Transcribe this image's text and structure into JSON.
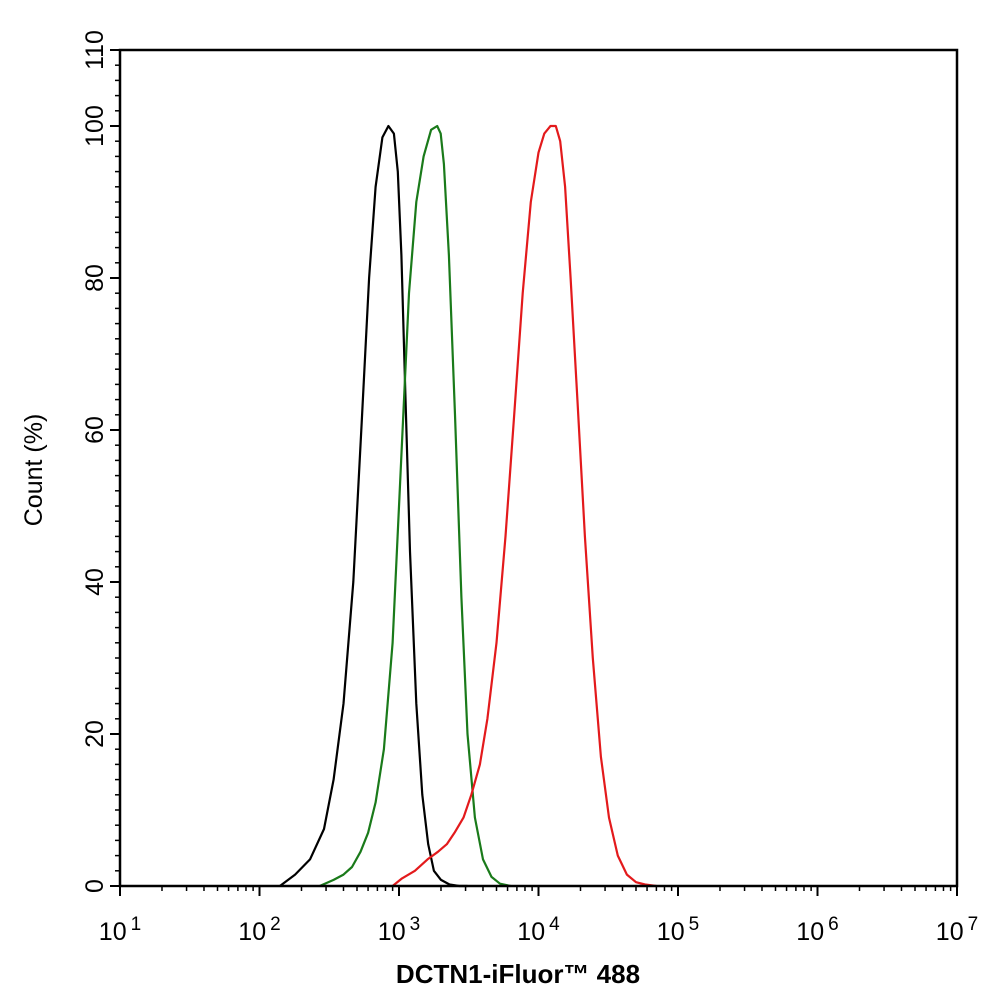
{
  "chart_data": {
    "type": "line",
    "title": "",
    "xlabel": "DCTN1-iFluor™ 488",
    "ylabel": "Count  (%)",
    "x_scale": "log",
    "xlim": [
      10,
      10000000
    ],
    "ylim": [
      0,
      110
    ],
    "grid": false,
    "legend": "none",
    "x_ticks": [
      {
        "base": "10",
        "exp": "1"
      },
      {
        "base": "10",
        "exp": "2"
      },
      {
        "base": "10",
        "exp": "3"
      },
      {
        "base": "10",
        "exp": "4"
      },
      {
        "base": "10",
        "exp": "5"
      },
      {
        "base": "10",
        "exp": "6"
      },
      {
        "base": "10",
        "exp": "7"
      }
    ],
    "y_ticks": [
      "0",
      "20",
      "40",
      "60",
      "80",
      "100",
      "110"
    ],
    "y_tick_values": [
      0,
      20,
      40,
      60,
      80,
      100,
      110
    ],
    "series": [
      {
        "color": "#000000",
        "x": [
          140,
          180,
          230,
          290,
          340,
          400,
          470,
          540,
          610,
          680,
          760,
          840,
          920,
          980,
          1040,
          1110,
          1200,
          1330,
          1470,
          1620,
          1780,
          2000,
          2300,
          2700,
          3100
        ],
        "y": [
          0,
          1.5,
          3.5,
          7.5,
          14,
          24,
          40,
          61,
          80,
          92,
          98.5,
          100,
          99,
          94,
          83,
          65,
          44,
          24,
          12,
          5.5,
          2,
          0.8,
          0.2,
          0,
          0
        ]
      },
      {
        "color": "#1a7a1a",
        "x": [
          270,
          340,
          400,
          460,
          530,
          600,
          680,
          780,
          900,
          1030,
          1180,
          1330,
          1500,
          1700,
          1880,
          1990,
          2100,
          2280,
          2520,
          2800,
          3100,
          3500,
          4000,
          4600,
          5300,
          6300
        ],
        "y": [
          0,
          0.8,
          1.5,
          2.5,
          4.5,
          7,
          11,
          18,
          32,
          55,
          78,
          90,
          96,
          99.5,
          100,
          99,
          95,
          83,
          62,
          38,
          20,
          9,
          3.5,
          1.2,
          0.3,
          0
        ]
      },
      {
        "color": "#e31a1c",
        "x": [
          900,
          1050,
          1300,
          1600,
          1900,
          2200,
          2500,
          2900,
          3300,
          3800,
          4300,
          5000,
          5800,
          6700,
          7700,
          8800,
          10000,
          11000,
          12200,
          13300,
          14300,
          15500,
          17000,
          19000,
          21500,
          24500,
          28000,
          32000,
          37000,
          43000,
          50000,
          58000,
          70000
        ],
        "y": [
          0,
          1,
          2,
          3.5,
          4.5,
          5.5,
          7,
          9,
          12,
          16,
          22,
          32,
          46,
          62,
          78,
          90,
          96.5,
          99,
          100,
          100,
          98,
          92,
          80,
          64,
          46,
          30,
          17,
          9,
          4,
          1.5,
          0.5,
          0.2,
          0
        ]
      }
    ]
  }
}
